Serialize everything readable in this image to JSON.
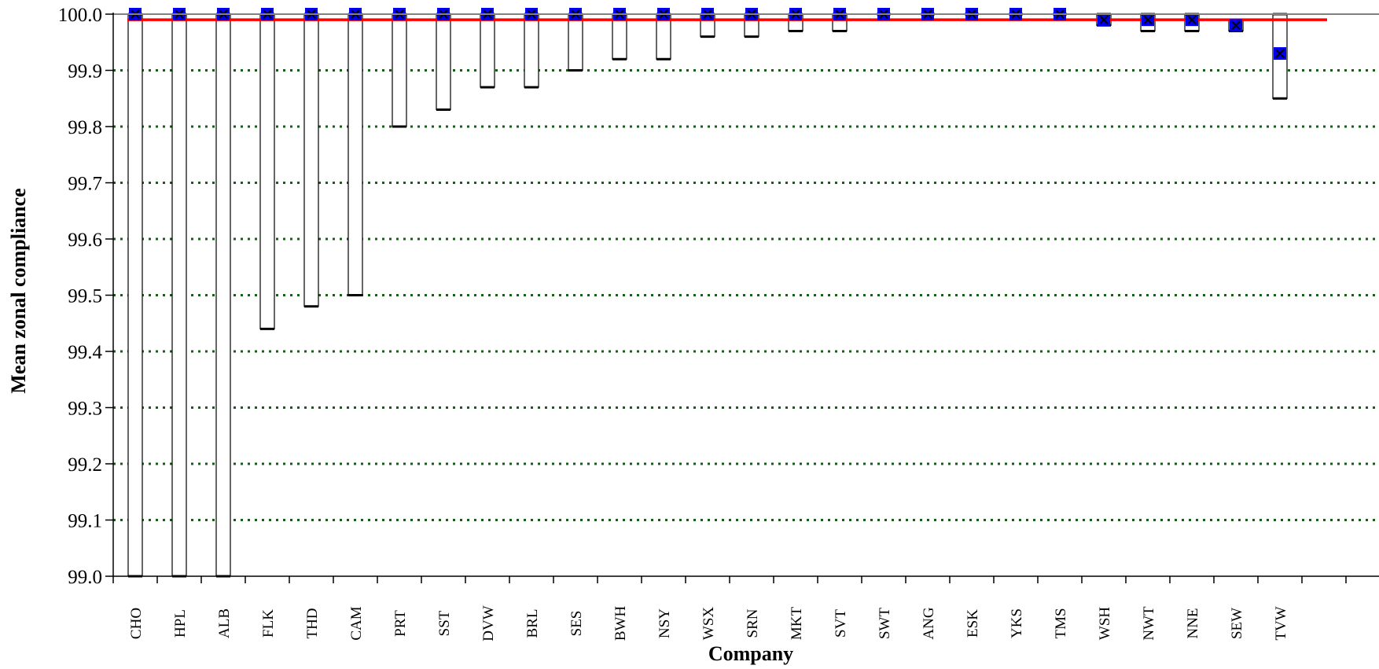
{
  "chart_data": {
    "type": "box",
    "xlabel": "Company",
    "ylabel": "Mean zonal compliance",
    "ylim": [
      99.0,
      100.0
    ],
    "yticks": [
      "99.0",
      "99.1",
      "99.2",
      "99.3",
      "99.4",
      "99.5",
      "99.6",
      "99.7",
      "99.8",
      "99.9",
      "100.0"
    ],
    "grid": "horizontal-dotted",
    "reference_line": 99.99,
    "categories": [
      "CHO",
      "HPL",
      "ALB",
      "FLK",
      "THD",
      "CAM",
      "PRT",
      "SST",
      "DVW",
      "BRL",
      "SES",
      "BWH",
      "NSY",
      "WSX",
      "SRN",
      "MKT",
      "SVT",
      "SWT",
      "ANG",
      "ESK",
      "YKS",
      "TMS",
      "WSH",
      "NWT",
      "NNE",
      "SEW",
      "TVW"
    ],
    "series": [
      {
        "values": [
          100.0,
          100.0,
          100.0,
          100.0,
          100.0,
          100.0,
          100.0,
          100.0,
          100.0,
          100.0,
          100.0,
          100.0,
          100.0,
          100.0,
          100.0,
          100.0,
          100.0,
          100.0,
          100.0,
          100.0,
          100.0,
          100.0,
          99.99,
          99.99,
          99.99,
          99.98,
          99.93
        ]
      },
      {
        "values": [
          99.0,
          99.0,
          99.0,
          99.44,
          99.48,
          99.5,
          99.8,
          99.83,
          99.87,
          99.87,
          99.9,
          99.92,
          99.92,
          99.96,
          99.96,
          99.97,
          99.97,
          100.0,
          100.0,
          100.0,
          100.0,
          100.0,
          99.98,
          99.97,
          99.97,
          99.97,
          99.85
        ]
      },
      {
        "values": [
          100.0,
          100.0,
          100.0,
          100.0,
          100.0,
          100.0,
          100.0,
          100.0,
          100.0,
          100.0,
          100.0,
          100.0,
          100.0,
          100.0,
          100.0,
          100.0,
          100.0,
          100.0,
          100.0,
          100.0,
          100.0,
          100.0,
          100.0,
          100.0,
          100.0,
          99.99,
          100.0
        ]
      }
    ],
    "colors": {
      "reference_line": "#ff0000",
      "grid": "#1a5c1a",
      "marker": "#0000ee",
      "box": "#000000"
    }
  }
}
